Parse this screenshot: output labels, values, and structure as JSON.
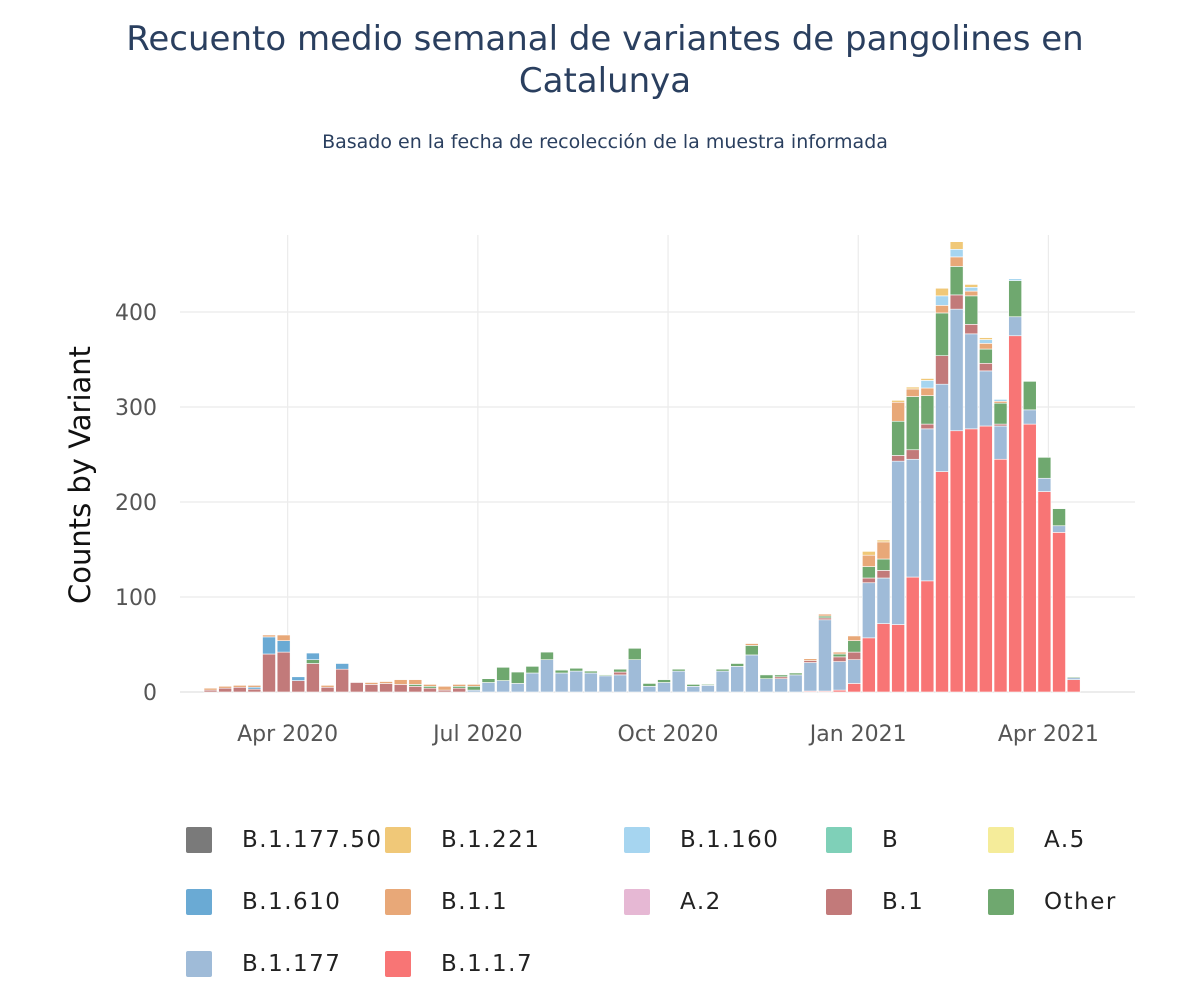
{
  "title_line1": "Recuento medio semanal de variantes de pangolines en",
  "title_line2": "Catalunya",
  "subtitle": "Basado en la fecha de recolección de la muestra informada",
  "chart_data": {
    "type": "bar",
    "stacked": true,
    "ylabel": "Counts by Variant",
    "xlabel": "",
    "ylim": [
      0,
      480
    ],
    "yticks": [
      0,
      100,
      200,
      300,
      400
    ],
    "xticks": [
      "Apr 2020",
      "Jul 2020",
      "Oct 2020",
      "Jan 2021",
      "Apr 2021"
    ],
    "xtick_week_index": [
      5,
      18,
      31,
      44,
      57
    ],
    "legend_placement": "bottom",
    "series": [
      {
        "name": "B.1.1.7",
        "color": "#f87575",
        "values": [
          0,
          0,
          0,
          0,
          0,
          0,
          0,
          0,
          0,
          0,
          0,
          0,
          0,
          0,
          0,
          0,
          0,
          0,
          0,
          0,
          0,
          0,
          0,
          0,
          0,
          0,
          0,
          0,
          0,
          0,
          0,
          0,
          0,
          0,
          0,
          0,
          0,
          0,
          0,
          0,
          0,
          1,
          1,
          2,
          9,
          57,
          72,
          71,
          121,
          117,
          232,
          275,
          277,
          280,
          245,
          375,
          282,
          211,
          168,
          13
        ]
      },
      {
        "name": "B.1.177",
        "color": "#9fbbd8",
        "values": [
          0,
          0,
          0,
          0,
          0,
          0,
          0,
          0,
          0,
          0,
          0,
          0,
          0,
          0,
          0,
          0,
          0,
          0,
          2,
          10,
          12,
          9,
          20,
          34,
          20,
          22,
          20,
          17,
          18,
          34,
          6,
          10,
          22,
          6,
          7,
          22,
          27,
          39,
          14,
          14,
          18,
          30,
          75,
          30,
          25,
          58,
          48,
          172,
          124,
          160,
          92,
          128,
          100,
          58,
          35,
          20,
          15,
          14,
          7,
          2
        ]
      },
      {
        "name": "B.1",
        "color": "#c27a7a",
        "values": [
          2,
          4,
          5,
          3,
          40,
          42,
          12,
          30,
          5,
          24,
          10,
          8,
          9,
          8,
          6,
          4,
          2,
          4,
          0,
          0,
          0,
          0,
          0,
          0,
          0,
          0,
          0,
          0,
          3,
          0,
          0,
          0,
          0,
          0,
          0,
          0,
          0,
          0,
          0,
          2,
          0,
          2,
          2,
          5,
          8,
          5,
          8,
          6,
          10,
          5,
          30,
          15,
          10,
          8,
          2,
          0,
          0,
          0,
          0,
          0
        ]
      },
      {
        "name": "Other",
        "color": "#6fa86f",
        "values": [
          0,
          0,
          0,
          0,
          0,
          0,
          0,
          4,
          0,
          0,
          0,
          0,
          0,
          0,
          2,
          2,
          0,
          2,
          4,
          4,
          14,
          12,
          7,
          8,
          3,
          3,
          2,
          1,
          3,
          12,
          3,
          3,
          2,
          2,
          1,
          2,
          3,
          10,
          4,
          2,
          2,
          0,
          2,
          3,
          12,
          12,
          12,
          36,
          56,
          30,
          45,
          30,
          30,
          15,
          22,
          38,
          30,
          22,
          18,
          1
        ]
      },
      {
        "name": "B.1.610",
        "color": "#6aaad4",
        "values": [
          0,
          0,
          0,
          2,
          18,
          12,
          4,
          7,
          0,
          6,
          0,
          0,
          0,
          0,
          0,
          0,
          0,
          0,
          0,
          0,
          0,
          0,
          0,
          0,
          0,
          0,
          0,
          0,
          0,
          0,
          0,
          0,
          0,
          0,
          0,
          0,
          0,
          0,
          0,
          0,
          0,
          0,
          0,
          0,
          0,
          0,
          0,
          0,
          0,
          0,
          0,
          0,
          0,
          0,
          0,
          0,
          0,
          0,
          0,
          0
        ]
      },
      {
        "name": "B.1.1",
        "color": "#e8a878",
        "values": [
          2,
          2,
          2,
          2,
          2,
          6,
          0,
          0,
          2,
          0,
          0,
          2,
          2,
          5,
          5,
          2,
          4,
          2,
          2,
          0,
          0,
          0,
          0,
          0,
          0,
          0,
          0,
          0,
          0,
          0,
          0,
          0,
          0,
          0,
          0,
          0,
          0,
          2,
          0,
          0,
          0,
          2,
          2,
          2,
          5,
          12,
          18,
          20,
          8,
          8,
          8,
          10,
          5,
          6,
          2,
          0,
          0,
          0,
          0,
          0
        ]
      },
      {
        "name": "B.1.160",
        "color": "#a6d5f0",
        "values": [
          0,
          0,
          0,
          0,
          0,
          0,
          0,
          0,
          0,
          0,
          0,
          0,
          0,
          0,
          0,
          0,
          0,
          0,
          0,
          0,
          0,
          0,
          0,
          0,
          0,
          0,
          0,
          0,
          0,
          0,
          0,
          0,
          0,
          0,
          0,
          0,
          0,
          0,
          0,
          0,
          0,
          0,
          0,
          0,
          0,
          0,
          0,
          0,
          0,
          8,
          10,
          8,
          4,
          4,
          2,
          2,
          0,
          0,
          0,
          0
        ]
      },
      {
        "name": "B.1.221",
        "color": "#f0c878",
        "values": [
          0,
          0,
          0,
          0,
          0,
          0,
          0,
          0,
          0,
          0,
          0,
          0,
          0,
          0,
          0,
          0,
          0,
          0,
          0,
          0,
          0,
          0,
          0,
          0,
          0,
          0,
          0,
          0,
          0,
          0,
          0,
          0,
          0,
          0,
          0,
          0,
          0,
          0,
          0,
          0,
          0,
          0,
          0,
          0,
          0,
          4,
          2,
          2,
          2,
          2,
          8,
          8,
          3,
          2,
          0,
          0,
          0,
          0,
          0,
          0
        ]
      },
      {
        "name": "B.1.177.50",
        "color": "#7a7a7a",
        "values": []
      },
      {
        "name": "B",
        "color": "#7fd0b8",
        "values": []
      },
      {
        "name": "A.5",
        "color": "#f5ec9a",
        "values": []
      },
      {
        "name": "A.2",
        "color": "#e6b8d4",
        "values": []
      }
    ]
  },
  "legend": [
    {
      "label": "B.1.177.50",
      "color": "#7a7a7a"
    },
    {
      "label": "B.1.221",
      "color": "#f0c878"
    },
    {
      "label": "B.1.160",
      "color": "#a6d5f0"
    },
    {
      "label": "B",
      "color": "#7fd0b8"
    },
    {
      "label": "A.5",
      "color": "#f5ec9a"
    },
    {
      "label": "B.1.610",
      "color": "#6aaad4"
    },
    {
      "label": "B.1.1",
      "color": "#e8a878"
    },
    {
      "label": "A.2",
      "color": "#e6b8d4"
    },
    {
      "label": "B.1",
      "color": "#c27a7a"
    },
    {
      "label": "Other",
      "color": "#6fa86f"
    },
    {
      "label": "B.1.177",
      "color": "#9fbbd8"
    },
    {
      "label": "B.1.1.7",
      "color": "#f87575"
    }
  ]
}
